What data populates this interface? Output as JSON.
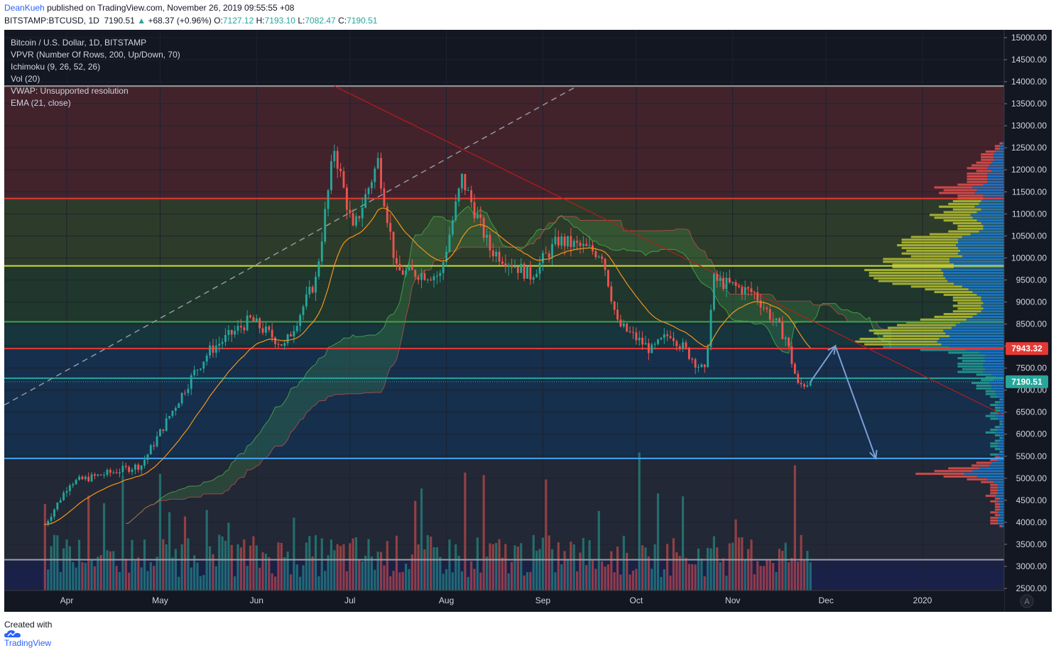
{
  "header": {
    "author": "DeanKueh",
    "published_text": "published on TradingView.com, November 26, 2019 09:55:55 +08"
  },
  "symbol_bar": {
    "symbol": "BITSTAMP:BTCUSD, 1D",
    "last": "7190.51",
    "change": "+68.37 (+0.96%)",
    "open_label": "O:",
    "open": "7127.12",
    "high_label": "H:",
    "high": "7193.10",
    "low_label": "L:",
    "low": "7082.47",
    "close_label": "C:",
    "close": "7190.51"
  },
  "legend": {
    "title": "Bitcoin / U.S. Dollar, 1D, BITSTAMP",
    "indicators": [
      "VPVR (Number Of Rows, 200, Up/Down, 70)",
      "Ichimoku (9, 26, 52, 26)",
      "Vol (20)",
      "VWAP: Unsupported resolution",
      "EMA (21, close)"
    ]
  },
  "price_tags": {
    "resistance": "7943.32",
    "last": "7190.51"
  },
  "corner_button": "A",
  "footer": {
    "created_with": "Created with",
    "brand": "TradingView"
  },
  "colors": {
    "background": "#131722",
    "up": "#26a69a",
    "down": "#ef5350",
    "ema": "#f7931a",
    "cloud_up": "#4caf50",
    "cloud_down": "#ef5350",
    "zone_red": "#ef5350",
    "zone_green": "#4caf50",
    "zone_blue": "#1e88e5",
    "yellow_line": "#cddc39",
    "green_line": "#43a047",
    "red_line": "#e53935",
    "blue_line": "#42a5f5",
    "arrow": "#7b9fd4",
    "accent": "#2962ff"
  },
  "chart_data": {
    "type": "candlestick",
    "title": "Bitcoin / U.S. Dollar, 1D, BITSTAMP",
    "x_ticks": [
      "Apr",
      "May",
      "Jun",
      "Jul",
      "Aug",
      "Sep",
      "Oct",
      "Nov",
      "Dec",
      "2020"
    ],
    "y_ticks": [
      "15000.00",
      "14500.00",
      "14000.00",
      "13500.00",
      "13000.00",
      "12500.00",
      "12000.00",
      "11500.00",
      "11000.00",
      "10500.00",
      "10000.00",
      "9500.00",
      "9000.00",
      "8500.00",
      "8000.00",
      "7500.00",
      "7000.00",
      "6500.00",
      "6000.00",
      "5500.00",
      "5000.00",
      "4500.00",
      "4000.00",
      "3500.00",
      "3000.00",
      "2500.00"
    ],
    "ylim": [
      2500,
      15000
    ],
    "horizontal_levels": [
      {
        "price": 13900,
        "color": "#9e9e9e"
      },
      {
        "price": 11350,
        "color": "#e53935"
      },
      {
        "price": 9820,
        "color": "#cddc39"
      },
      {
        "price": 8550,
        "color": "#43a047"
      },
      {
        "price": 7943.32,
        "color": "#e53935"
      },
      {
        "price": 7270,
        "color": "#26a69a"
      },
      {
        "price": 5450,
        "color": "#42a5f5"
      },
      {
        "price": 3150,
        "color": "#9e9e9e"
      }
    ],
    "zones": [
      {
        "from": 11350,
        "to": 13900,
        "color": "#ef5350"
      },
      {
        "from": 9820,
        "to": 11350,
        "color": "#8bc34a"
      },
      {
        "from": 8550,
        "to": 9820,
        "color": "#4caf50"
      },
      {
        "from": 7943.32,
        "to": 8550,
        "color": "#26a69a"
      },
      {
        "from": 5450,
        "to": 7943.32,
        "color": "#1e88e5"
      },
      {
        "from": 3150,
        "to": 5450,
        "color": "#5d6a7a"
      }
    ],
    "series_anchors": [
      {
        "date": "2019-03-25",
        "close": 3950
      },
      {
        "date": "2019-04-02",
        "close": 4900
      },
      {
        "date": "2019-04-25",
        "close": 5300
      },
      {
        "date": "2019-05-12",
        "close": 7400
      },
      {
        "date": "2019-05-17",
        "close": 7900
      },
      {
        "date": "2019-05-30",
        "close": 8600
      },
      {
        "date": "2019-06-10",
        "close": 8000
      },
      {
        "date": "2019-06-20",
        "close": 9500
      },
      {
        "date": "2019-06-26",
        "close": 12500
      },
      {
        "date": "2019-07-02",
        "close": 10600
      },
      {
        "date": "2019-07-10",
        "close": 12200
      },
      {
        "date": "2019-07-16",
        "close": 9700
      },
      {
        "date": "2019-07-30",
        "close": 9600
      },
      {
        "date": "2019-08-06",
        "close": 11800
      },
      {
        "date": "2019-08-15",
        "close": 10200
      },
      {
        "date": "2019-08-28",
        "close": 9600
      },
      {
        "date": "2019-09-06",
        "close": 10400
      },
      {
        "date": "2019-09-20",
        "close": 10100
      },
      {
        "date": "2019-09-25",
        "close": 8500
      },
      {
        "date": "2019-10-06",
        "close": 7900
      },
      {
        "date": "2019-10-12",
        "close": 8300
      },
      {
        "date": "2019-10-23",
        "close": 7400
      },
      {
        "date": "2019-10-26",
        "close": 9500
      },
      {
        "date": "2019-11-08",
        "close": 9200
      },
      {
        "date": "2019-11-18",
        "close": 8200
      },
      {
        "date": "2019-11-22",
        "close": 7100
      },
      {
        "date": "2019-11-26",
        "close": 7190.51
      }
    ],
    "trend_arrow": {
      "points": [
        [
          "2019-11-26",
          7190
        ],
        [
          "2019-12-04",
          8000
        ],
        [
          "2019-12-17",
          5450
        ]
      ]
    }
  }
}
